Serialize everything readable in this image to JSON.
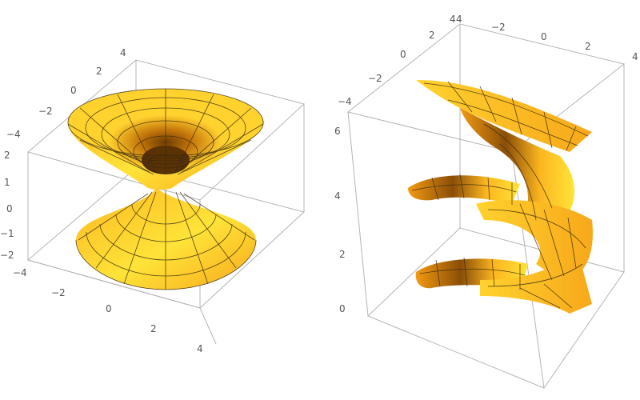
{
  "colors": {
    "surface_light": "#ffe338",
    "surface_mid": "#fcb620",
    "surface_dark": "#c27408",
    "mesh": "#3a2a10",
    "box": "#b4b4b4",
    "tick": "#555555"
  },
  "left_plot": {
    "ticks": {
      "back_top": [
        "4",
        "2",
        "0",
        "−2",
        "−4"
      ],
      "vertical": [
        "2",
        "1",
        "0",
        "−1",
        "−2"
      ],
      "front_bottom": [
        "−4",
        "−2",
        "0",
        "2",
        "4"
      ]
    }
  },
  "right_plot": {
    "ticks": {
      "back_left": [
        "4",
        "2",
        "0",
        "−2",
        "−4"
      ],
      "back_top": [
        "4",
        "−2",
        "0",
        "2",
        "4"
      ],
      "vertical": [
        "6",
        "4",
        "2",
        "0"
      ]
    }
  }
}
